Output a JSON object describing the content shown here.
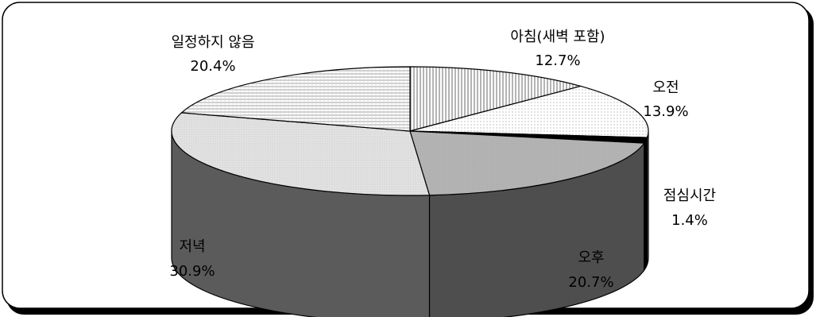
{
  "chart_data": {
    "type": "pie",
    "style": "3d",
    "slices": [
      {
        "label": "아침(새벽 포함)",
        "value": 12.7,
        "value_label": "12.7%"
      },
      {
        "label": "오전",
        "value": 13.9,
        "value_label": "13.9%"
      },
      {
        "label": "점심시간",
        "value": 1.4,
        "value_label": "1.4%"
      },
      {
        "label": "오후",
        "value": 20.7,
        "value_label": "20.7%"
      },
      {
        "label": "저녁",
        "value": 30.9,
        "value_label": "30.9%"
      },
      {
        "label": "일정하지 않음",
        "value": 20.4,
        "value_label": "20.4%"
      }
    ],
    "colors": {
      "top": [
        "#fcfcfc",
        "#fdfdfd",
        "#000000",
        "#bdbdbd",
        "#d6d6d6",
        "#f2f2f2"
      ],
      "side": [
        "#c0c0c0",
        "#c0c0c0",
        "#000000",
        "#4e4e4e",
        "#5b5b5b",
        "#c0c0c0"
      ]
    }
  }
}
